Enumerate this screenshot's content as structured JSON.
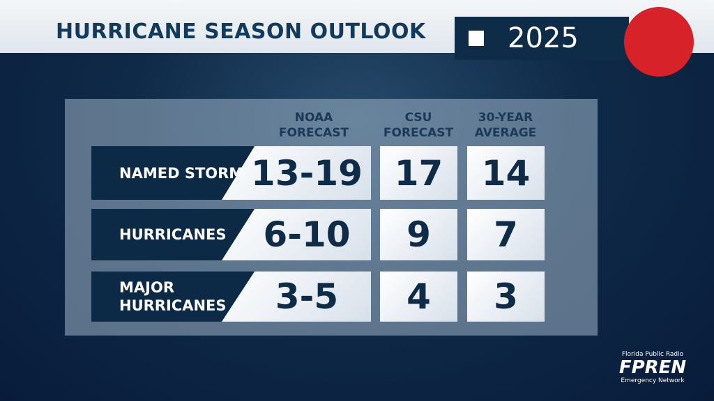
{
  "header": {
    "title": "HURRICANE SEASON OUTLOOK",
    "year": "2025"
  },
  "table": {
    "columns": [
      "NOAA FORECAST",
      "CSU FORECAST",
      "30-YEAR AVERAGE"
    ],
    "rows": [
      {
        "label": "NAMED STORMS",
        "values": [
          "13-19",
          "17",
          "14"
        ]
      },
      {
        "label": "HURRICANES",
        "values": [
          "6-10",
          "9",
          "7"
        ]
      },
      {
        "label": "MAJOR HURRICANES",
        "values": [
          "3-5",
          "4",
          "3"
        ]
      }
    ]
  },
  "footer": {
    "line1": "Florida Public Radio",
    "logo": "FPREN",
    "line2": "Emergency Network"
  }
}
